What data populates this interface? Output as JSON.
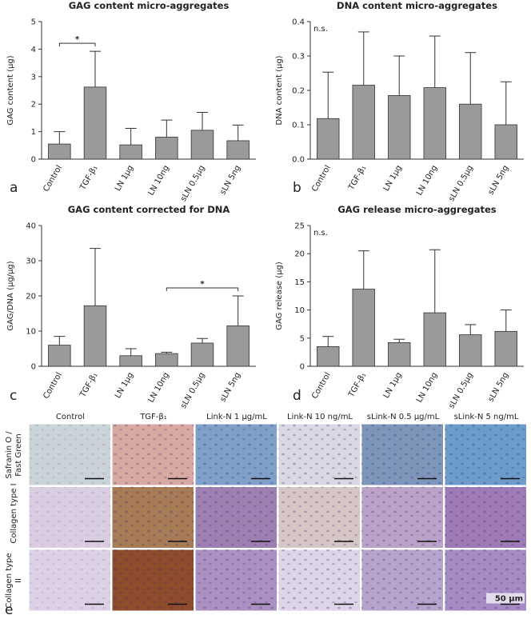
{
  "chart_data": [
    {
      "type": "bar",
      "title": "GAG content micro-aggregates",
      "ylabel": "GAG content (μg)",
      "panel": "a",
      "categories": [
        "Control",
        "TGF-β₁",
        "LN 1μg",
        "LN 10ng",
        "sLN 0.5μg",
        "sLN 5ng"
      ],
      "values": [
        0.55,
        2.62,
        0.52,
        0.8,
        1.05,
        0.67
      ],
      "errors": [
        0.45,
        1.3,
        0.6,
        0.62,
        0.65,
        0.57
      ],
      "color": "#9a9a9a",
      "ylim": [
        0,
        5
      ],
      "yticks": [
        0,
        1,
        2,
        3,
        4,
        5
      ],
      "annotations": [
        {
          "text": "*",
          "between": [
            "Control",
            "TGF-β₁"
          ]
        }
      ]
    },
    {
      "type": "bar",
      "title": "DNA content micro-aggregates",
      "ylabel": "DNA content (μg)",
      "panel": "b",
      "categories": [
        "Control",
        "TGF-β₁",
        "LN 1μg",
        "LN 10ng",
        "sLN 0.5μg",
        "sLN 5ng"
      ],
      "values": [
        0.118,
        0.215,
        0.185,
        0.208,
        0.16,
        0.1
      ],
      "errors": [
        0.135,
        0.155,
        0.115,
        0.15,
        0.15,
        0.125
      ],
      "color": "#9a9a9a",
      "ylim": [
        0,
        0.4
      ],
      "yticks": [
        {
          "value": 0,
          "label": "0.0"
        },
        0.1,
        0.2,
        0.3,
        0.4
      ],
      "annotations": [
        {
          "text": "n.s."
        }
      ]
    },
    {
      "type": "bar",
      "title": "GAG content corrected for DNA",
      "ylabel": "GAG/DNA (μg/μg)",
      "panel": "c",
      "categories": [
        "Control",
        "TGF-β₁",
        "LN 1μg",
        "LN 10ng",
        "sLN 0.5μg",
        "sLN 5ng"
      ],
      "values": [
        6,
        17.2,
        3,
        3.6,
        6.6,
        11.5
      ],
      "errors": [
        2.5,
        16.3,
        2,
        0.4,
        1.3,
        8.5
      ],
      "color": "#9a9a9a",
      "ylim": [
        0,
        40
      ],
      "yticks": [
        0,
        10,
        20,
        30,
        40
      ],
      "annotations": [
        {
          "text": "*",
          "between": [
            "LN 10ng",
            "sLN 5ng"
          ]
        }
      ]
    },
    {
      "type": "bar",
      "title": "GAG release micro-aggregates",
      "ylabel": "GAG release (μg)",
      "panel": "d",
      "categories": [
        "Control",
        "TGF-β₁",
        "LN 1μg",
        "LN 10ng",
        "sLN 0.5μg",
        "sLN 5ng"
      ],
      "values": [
        3.5,
        13.7,
        4.2,
        9.5,
        5.6,
        6.2
      ],
      "errors": [
        1.8,
        6.8,
        0.6,
        11.2,
        1.8,
        3.8
      ],
      "color": "#9a9a9a",
      "ylim": [
        0,
        25
      ],
      "yticks": [
        0,
        5,
        10,
        15,
        20,
        25
      ],
      "annotations": [
        {
          "text": "n.s."
        }
      ]
    }
  ],
  "histology": {
    "columns": [
      "Control",
      "TGF-β₁",
      "Link-N 1 μg/mL",
      "Link-N 10 ng/mL",
      "sLink-N 0.5 μg/mL",
      "sLink-N 5 ng/mL"
    ],
    "rows": [
      "Safranin O / Fast Green",
      "Collagen type I",
      "Collagen type II"
    ],
    "label": "e",
    "scale_bar": "50 μm"
  }
}
